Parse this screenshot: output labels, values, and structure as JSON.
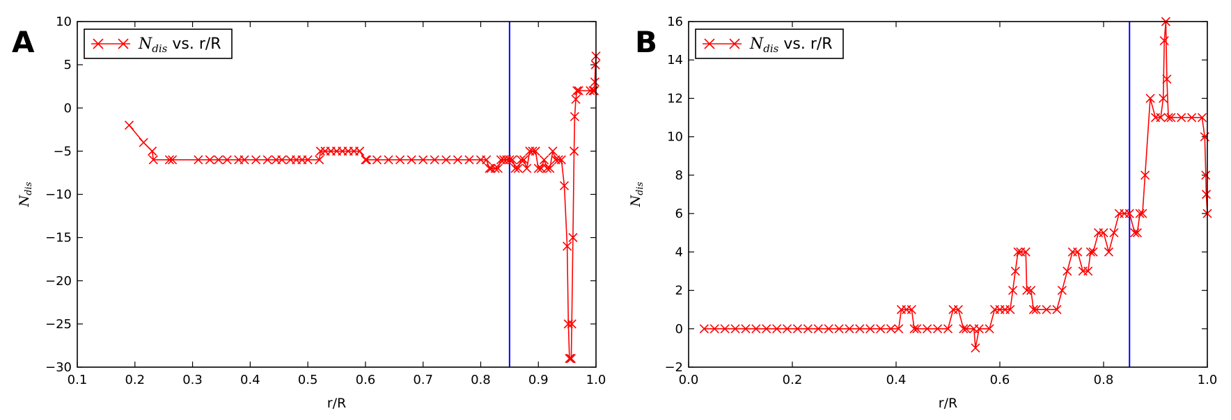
{
  "colors": {
    "series": "#ff0000",
    "reference_line": "#0000ff",
    "axes": "#000000"
  },
  "chart_data": [
    {
      "panel": "A",
      "type": "line",
      "marker": "x",
      "xlabel": "r/R",
      "ylabel_symbol": "N",
      "ylabel_subscript": "dis",
      "xlim": [
        0.1,
        1.0
      ],
      "ylim": [
        -30,
        10
      ],
      "xticks": [
        0.1,
        0.2,
        0.3,
        0.4,
        0.5,
        0.6,
        0.7,
        0.8,
        0.9,
        1.0
      ],
      "xtick_labels": [
        "0.1",
        "0.2",
        "0.3",
        "0.4",
        "0.5",
        "0.6",
        "0.7",
        "0.8",
        "0.9",
        "1.0"
      ],
      "yticks": [
        -30,
        -25,
        -20,
        -15,
        -10,
        -5,
        0,
        5,
        10
      ],
      "ytick_labels": [
        "−30",
        "−25",
        "−20",
        "−15",
        "−10",
        "−5",
        "0",
        "5",
        "10"
      ],
      "vline_x": 0.85,
      "legend": {
        "location": "upper-left",
        "symbol": "N",
        "subscript": "dis",
        "suffix": " vs. r/R"
      },
      "series": [
        {
          "name": "N_dis vs. r/R",
          "x": [
            0.19,
            0.215,
            0.23,
            0.232,
            0.26,
            0.265,
            0.31,
            0.33,
            0.345,
            0.36,
            0.38,
            0.39,
            0.41,
            0.43,
            0.445,
            0.455,
            0.47,
            0.48,
            0.49,
            0.5,
            0.52,
            0.522,
            0.53,
            0.54,
            0.55,
            0.56,
            0.57,
            0.58,
            0.59,
            0.6,
            0.602,
            0.62,
            0.64,
            0.66,
            0.68,
            0.7,
            0.72,
            0.74,
            0.76,
            0.78,
            0.8,
            0.81,
            0.815,
            0.818,
            0.825,
            0.83,
            0.835,
            0.84,
            0.845,
            0.85,
            0.855,
            0.86,
            0.865,
            0.87,
            0.875,
            0.88,
            0.885,
            0.89,
            0.895,
            0.9,
            0.905,
            0.91,
            0.915,
            0.92,
            0.925,
            0.93,
            0.935,
            0.94,
            0.945,
            0.95,
            0.952,
            0.954,
            0.955,
            0.957,
            0.958,
            0.96,
            0.962,
            0.963,
            0.965,
            0.967,
            0.97,
            0.99,
            0.995,
            0.997,
            0.998,
            0.999,
            1.0
          ],
          "y": [
            -2,
            -4,
            -5,
            -6,
            -6,
            -6,
            -6,
            -6,
            -6,
            -6,
            -6,
            -6,
            -6,
            -6,
            -6,
            -6,
            -6,
            -6,
            -6,
            -6,
            -6,
            -5,
            -5,
            -5,
            -5,
            -5,
            -5,
            -5,
            -5,
            -6,
            -6,
            -6,
            -6,
            -6,
            -6,
            -6,
            -6,
            -6,
            -6,
            -6,
            -6,
            -6,
            -7,
            -7,
            -7,
            -7,
            -6,
            -6,
            -6,
            -6,
            -6,
            -7,
            -7,
            -6,
            -6,
            -7,
            -5,
            -5,
            -5,
            -7,
            -7,
            -6,
            -7,
            -7,
            -5,
            -6,
            -6,
            -6,
            -9,
            -16,
            -25,
            -29,
            -29,
            -29,
            -25,
            -15,
            -5,
            -1,
            1,
            2,
            2,
            2,
            2,
            2,
            3,
            5,
            6
          ]
        }
      ]
    },
    {
      "panel": "B",
      "type": "line",
      "marker": "x",
      "xlabel": "r/R",
      "ylabel_symbol": "N",
      "ylabel_subscript": "dis",
      "xlim": [
        0.0,
        1.0
      ],
      "ylim": [
        -2,
        16
      ],
      "xticks": [
        0.0,
        0.2,
        0.4,
        0.6,
        0.8,
        1.0
      ],
      "xtick_labels": [
        "0.0",
        "0.2",
        "0.4",
        "0.6",
        "0.8",
        "1.0"
      ],
      "yticks": [
        -2,
        0,
        2,
        4,
        6,
        8,
        10,
        12,
        14,
        16
      ],
      "ytick_labels": [
        "−2",
        "0",
        "2",
        "4",
        "6",
        "8",
        "10",
        "12",
        "14",
        "16"
      ],
      "vline_x": 0.85,
      "legend": {
        "location": "upper-left",
        "symbol": "N",
        "subscript": "dis",
        "suffix": " vs. r/R"
      },
      "series": [
        {
          "name": "N_dis vs. r/R",
          "x": [
            0.03,
            0.05,
            0.07,
            0.09,
            0.11,
            0.13,
            0.15,
            0.17,
            0.19,
            0.21,
            0.23,
            0.25,
            0.27,
            0.29,
            0.31,
            0.33,
            0.35,
            0.37,
            0.39,
            0.405,
            0.41,
            0.42,
            0.43,
            0.435,
            0.44,
            0.46,
            0.48,
            0.5,
            0.51,
            0.52,
            0.53,
            0.535,
            0.55,
            0.553,
            0.56,
            0.58,
            0.59,
            0.6,
            0.61,
            0.62,
            0.625,
            0.63,
            0.635,
            0.64,
            0.65,
            0.652,
            0.66,
            0.665,
            0.67,
            0.69,
            0.71,
            0.72,
            0.73,
            0.74,
            0.75,
            0.76,
            0.77,
            0.775,
            0.78,
            0.79,
            0.8,
            0.81,
            0.82,
            0.83,
            0.84,
            0.85,
            0.86,
            0.865,
            0.87,
            0.875,
            0.88,
            0.89,
            0.9,
            0.91,
            0.915,
            0.917,
            0.92,
            0.922,
            0.925,
            0.93,
            0.95,
            0.97,
            0.99,
            0.995,
            0.997,
            0.998,
            1.0
          ],
          "y": [
            0,
            0,
            0,
            0,
            0,
            0,
            0,
            0,
            0,
            0,
            0,
            0,
            0,
            0,
            0,
            0,
            0,
            0,
            0,
            0,
            1,
            1,
            1,
            0,
            0,
            0,
            0,
            0,
            1,
            1,
            0,
            0,
            0,
            -1,
            0,
            0,
            1,
            1,
            1,
            1,
            2,
            3,
            4,
            4,
            4,
            2,
            2,
            1,
            1,
            1,
            1,
            2,
            3,
            4,
            4,
            3,
            3,
            4,
            4,
            5,
            5,
            4,
            5,
            6,
            6,
            6,
            5,
            5,
            6,
            6,
            8,
            12,
            11,
            11,
            12,
            15,
            16,
            13,
            11,
            11,
            11,
            11,
            11,
            10,
            8,
            7,
            6
          ]
        }
      ]
    }
  ]
}
